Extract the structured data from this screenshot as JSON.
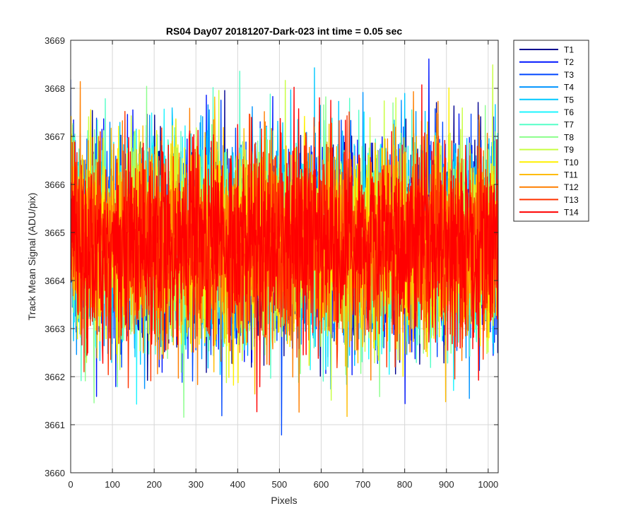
{
  "chart_data": {
    "type": "line",
    "title": "RS04 Day07 20181207-Dark-023 int time = 0.05 sec",
    "xlabel": "Pixels",
    "ylabel": "Track Mean Signal (ADU/pix)",
    "xlim": [
      0,
      1024
    ],
    "ylim": [
      3660,
      3669
    ],
    "xticks": [
      0,
      100,
      200,
      300,
      400,
      500,
      600,
      700,
      800,
      900,
      1000
    ],
    "yticks": [
      3660,
      3661,
      3662,
      3663,
      3664,
      3665,
      3666,
      3667,
      3668,
      3669
    ],
    "grid": true,
    "legend_position": "outside-top-right",
    "noise": {
      "mean": 3664.8,
      "std": 1.0,
      "points_per_series": 1024
    },
    "series": [
      {
        "name": "T1",
        "color": "#00008f"
      },
      {
        "name": "T2",
        "color": "#0016ff"
      },
      {
        "name": "T3",
        "color": "#0047ff"
      },
      {
        "name": "T4",
        "color": "#0094ff"
      },
      {
        "name": "T5",
        "color": "#00c8ff"
      },
      {
        "name": "T6",
        "color": "#1ef4ff"
      },
      {
        "name": "T7",
        "color": "#56ffc8"
      },
      {
        "name": "T8",
        "color": "#8bff8b"
      },
      {
        "name": "T9",
        "color": "#c8ff42"
      },
      {
        "name": "T10",
        "color": "#fff000"
      },
      {
        "name": "T11",
        "color": "#ffbc00"
      },
      {
        "name": "T12",
        "color": "#ff7f00"
      },
      {
        "name": "T13",
        "color": "#ff3300"
      },
      {
        "name": "T14",
        "color": "#ff0000"
      }
    ]
  }
}
